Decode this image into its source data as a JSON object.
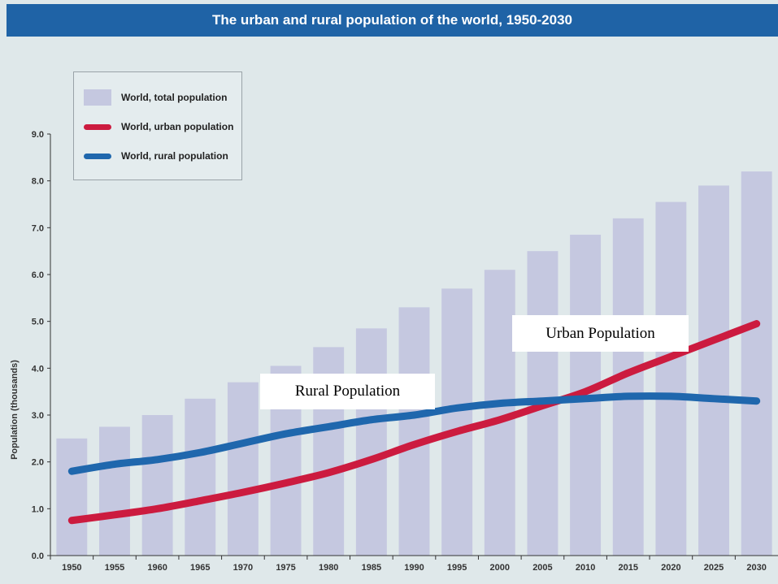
{
  "title": "The urban and rural population of the world, 1950-2030",
  "colors": {
    "header_bg": "#1f63a6",
    "background": "#dfe8ea",
    "total_bars": "#c5c8e0",
    "urban": "#cc1b3f",
    "rural": "#1f67ad"
  },
  "chart_data": {
    "type": "bar",
    "title": "The urban and rural population of the world, 1950-2030",
    "xlabel": "",
    "ylabel": "Population (thousands)",
    "ylim": [
      0,
      9
    ],
    "yticks": [
      "0.0",
      "1.0",
      "2.0",
      "3.0",
      "4.0",
      "5.0",
      "6.0",
      "7.0",
      "8.0",
      "9.0"
    ],
    "categories": [
      "1950",
      "1955",
      "1960",
      "1965",
      "1970",
      "1975",
      "1980",
      "1985",
      "1990",
      "1995",
      "2000",
      "2005",
      "2010",
      "2015",
      "2020",
      "2025",
      "2030"
    ],
    "grid": false,
    "legend_position": "top-left",
    "series": [
      {
        "name": "World, total population",
        "type": "bar",
        "values": [
          2.5,
          2.75,
          3.0,
          3.35,
          3.7,
          4.05,
          4.45,
          4.85,
          5.3,
          5.7,
          6.1,
          6.5,
          6.85,
          7.2,
          7.55,
          7.9,
          8.2
        ]
      },
      {
        "name": "World, urban population",
        "type": "line",
        "values": [
          0.75,
          0.87,
          1.0,
          1.17,
          1.35,
          1.55,
          1.77,
          2.05,
          2.37,
          2.65,
          2.9,
          3.2,
          3.5,
          3.9,
          4.25,
          4.6,
          4.95
        ]
      },
      {
        "name": "World, rural population",
        "type": "line",
        "values": [
          1.8,
          1.95,
          2.05,
          2.2,
          2.4,
          2.6,
          2.75,
          2.9,
          3.0,
          3.15,
          3.25,
          3.3,
          3.35,
          3.4,
          3.4,
          3.35,
          3.3
        ]
      }
    ],
    "legend": [
      "World, total population",
      "World, urban population",
      "World, rural population"
    ],
    "annotations": [
      "Rural Population",
      "Urban Population"
    ]
  }
}
